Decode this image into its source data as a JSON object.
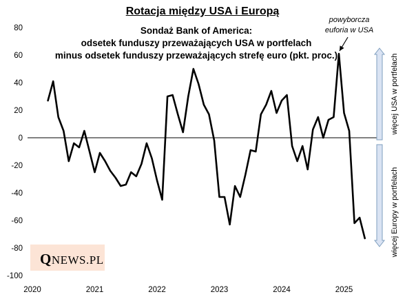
{
  "chart_data": {
    "type": "line",
    "title": "Rotacja między USA i Europą",
    "subtitle_lines": [
      "Sondaż Bank of America:",
      "odsetek funduszy przeważających USA w portfelach",
      "minus odsetek funduszy przeważających strefę euro (pkt. proc.)"
    ],
    "xlabel": "",
    "ylabel": "",
    "ylim": [
      -100,
      80
    ],
    "yticks": [
      "80",
      "60",
      "40",
      "20",
      "0",
      "-20",
      "-40",
      "-60",
      "-80",
      "-100"
    ],
    "xticks": [
      "2020",
      "2021",
      "2022",
      "2023",
      "2024",
      "2025"
    ],
    "grid": false,
    "series": [
      {
        "x": [
          "2020-04",
          "2020-05",
          "2020-06",
          "2020-07",
          "2020-08",
          "2020-09",
          "2020-10",
          "2020-11",
          "2020-12",
          "2021-01",
          "2021-02",
          "2021-03",
          "2021-04",
          "2021-05",
          "2021-06",
          "2021-07",
          "2021-08",
          "2021-09",
          "2021-10",
          "2021-11",
          "2021-12",
          "2022-01",
          "2022-02",
          "2022-03",
          "2022-04",
          "2022-05",
          "2022-06",
          "2022-07",
          "2022-08",
          "2022-09",
          "2022-10",
          "2022-11",
          "2022-12",
          "2023-01",
          "2023-02",
          "2023-03",
          "2023-04",
          "2023-05",
          "2023-06",
          "2023-07",
          "2023-08",
          "2023-09",
          "2023-10",
          "2023-11",
          "2023-12",
          "2024-01",
          "2024-02",
          "2024-03",
          "2024-04",
          "2024-05",
          "2024-06",
          "2024-07",
          "2024-08",
          "2024-09",
          "2024-10",
          "2024-11",
          "2024-12",
          "2025-01",
          "2025-02",
          "2025-03",
          "2025-04",
          "2025-05"
        ],
        "values": [
          27,
          41,
          15,
          5,
          -17,
          -4,
          -7,
          5,
          -10,
          -25,
          -11,
          -17,
          -24,
          -29,
          -35,
          -34,
          -25,
          -28,
          -19,
          -4,
          -15,
          -31,
          -45,
          30,
          31,
          17,
          4,
          30,
          50,
          39,
          24,
          17,
          -2,
          -43,
          -43,
          -63,
          -35,
          -43,
          -27,
          -9,
          -10,
          17,
          24,
          34,
          18,
          27,
          31,
          -6,
          -17,
          -6,
          -23,
          6,
          15,
          0,
          13,
          15,
          61,
          18,
          5,
          -62,
          -58,
          -73
        ]
      }
    ],
    "annotation": {
      "lines": [
        "powyborcza",
        "euforia w USA"
      ],
      "target_x": "2024-12"
    },
    "side_labels": {
      "upper": "więcej USA w portfelach",
      "lower": "więcej Europy w portfelach"
    },
    "colors": {
      "line": "#000000",
      "arrow_fill": "#dae3f3",
      "arrow_stroke": "#7f9fbf",
      "logo_bg": "#fce4d6"
    }
  },
  "logo": {
    "q": "Q",
    "rest": "NEWS.PL"
  }
}
